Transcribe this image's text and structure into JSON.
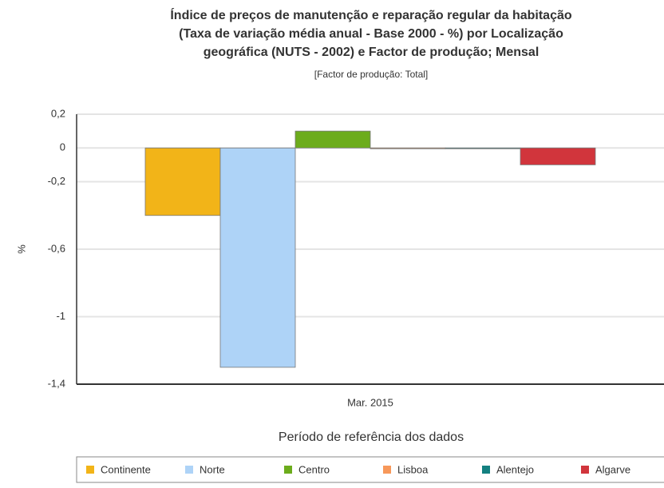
{
  "chart_data": {
    "type": "bar",
    "title": [
      "Índice de preços de manutenção e reparação regular da habitação",
      "(Taxa de variação média anual - Base 2000 - %) por Localização",
      "geográfica (NUTS - 2002) e Factor de produção; Mensal"
    ],
    "subtitle": "[Factor de produção: Total]",
    "y_label": "%",
    "x_label": "Período de referência dos dados",
    "categories": [
      "Mar. 2015"
    ],
    "series": [
      {
        "name": "Continente",
        "color": "#f2b418",
        "values": [
          -0.4
        ]
      },
      {
        "name": "Norte",
        "color": "#aed3f7",
        "values": [
          -1.3
        ]
      },
      {
        "name": "Centro",
        "color": "#6cac1c",
        "values": [
          0.1
        ]
      },
      {
        "name": "Lisboa",
        "color": "#f7985a",
        "values": [
          0
        ]
      },
      {
        "name": "Alentejo",
        "color": "#148080",
        "values": [
          0
        ]
      },
      {
        "name": "Algarve",
        "color": "#d1353c",
        "values": [
          -0.1
        ]
      }
    ],
    "ylim": [
      -1.4,
      0.2
    ],
    "yticks": [
      {
        "value": 0.2,
        "label": "0,2"
      },
      0,
      {
        "value": -0.2,
        "label": "-0,2"
      },
      {
        "value": -0.6,
        "label": "-0,6"
      },
      -1,
      {
        "value": -1.4,
        "label": "-1,4"
      }
    ],
    "grid": true
  }
}
